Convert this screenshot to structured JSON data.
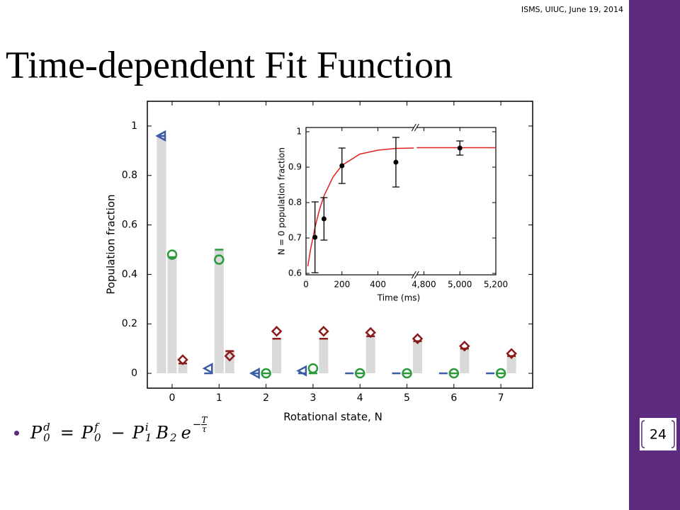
{
  "header": {
    "event": "ISMS, UIUC, June 19, 2014"
  },
  "title": "Time-dependent Fit Function",
  "page_number": "24",
  "equation": [
    {
      "base": "P",
      "sup": "d",
      "sub": "0"
    },
    {
      "op": "="
    },
    {
      "base": "P",
      "sup": "f",
      "sub": "0"
    },
    {
      "op": "−"
    },
    {
      "base": "P",
      "sup": "i",
      "sub": "1"
    },
    {
      "base": "B",
      "sub": "2"
    },
    {
      "base": "e",
      "sup_sign": "−",
      "sup_num": "T",
      "sup_den": "τ"
    }
  ],
  "chart_data": [
    {
      "type": "bar",
      "xlabel": "Rotational state, N",
      "ylabel": "Population fraction",
      "categories": [
        "0",
        "1",
        "2",
        "3",
        "4",
        "5",
        "6",
        "7"
      ],
      "ylim": [
        -0.06,
        1.1
      ],
      "yticks": [
        0,
        0.2,
        0.4,
        0.6,
        0.8,
        1
      ],
      "bar_color": "#d9d9d9",
      "series": [
        {
          "color": "#3b5ba5",
          "marker": "triangle",
          "theory": [
            0.96,
            0,
            0,
            0,
            0,
            0,
            0,
            0
          ],
          "values": [
            0.96,
            0.02,
            0,
            0.01,
            null,
            null,
            null,
            null
          ]
        },
        {
          "color": "#2a9a3a",
          "marker": "circle",
          "theory": [
            0.47,
            0.5,
            0,
            0,
            0,
            0,
            0,
            0
          ],
          "values": [
            0.48,
            0.46,
            0,
            0.02,
            0,
            0,
            0,
            0
          ]
        },
        {
          "color": "#8b1a1a",
          "marker": "diamond",
          "theory": [
            0.04,
            0.09,
            0.14,
            0.14,
            0.15,
            0.13,
            0.1,
            0.07
          ],
          "values": [
            0.055,
            0.07,
            0.17,
            0.17,
            0.165,
            0.14,
            0.11,
            0.08
          ]
        }
      ]
    },
    {
      "type": "scatter",
      "xlabel": "Time (ms)",
      "ylabel": "N = 0 population fraction",
      "xlim": [
        0,
        5200
      ],
      "xbreak": [
        600,
        4760
      ],
      "ylim": [
        0.596,
        1.012
      ],
      "xticks": [
        0,
        200,
        400,
        {
          "value": 4800,
          "label": "4,800"
        },
        {
          "value": 5000,
          "label": "5,000"
        },
        {
          "value": 5200,
          "label": "5,200"
        }
      ],
      "yticks": [
        0.6,
        0.7,
        0.8,
        0.9,
        1
      ],
      "points": {
        "color": "#000000",
        "x": [
          50,
          100,
          200,
          500,
          5000
        ],
        "values": [
          0.702,
          0.754,
          0.904,
          0.914,
          0.954
        ],
        "errors": [
          0.1,
          0.06,
          0.05,
          0.07,
          0.02
        ]
      },
      "fit": {
        "color": "#e02020",
        "x": [
          10,
          25,
          50,
          75,
          100,
          150,
          200,
          300,
          400,
          500,
          600,
          null,
          4760,
          5200
        ],
        "values": [
          0.62,
          0.667,
          0.73,
          0.78,
          0.819,
          0.872,
          0.905,
          0.937,
          0.948,
          0.953,
          0.954,
          null,
          0.955,
          0.955
        ]
      }
    }
  ]
}
